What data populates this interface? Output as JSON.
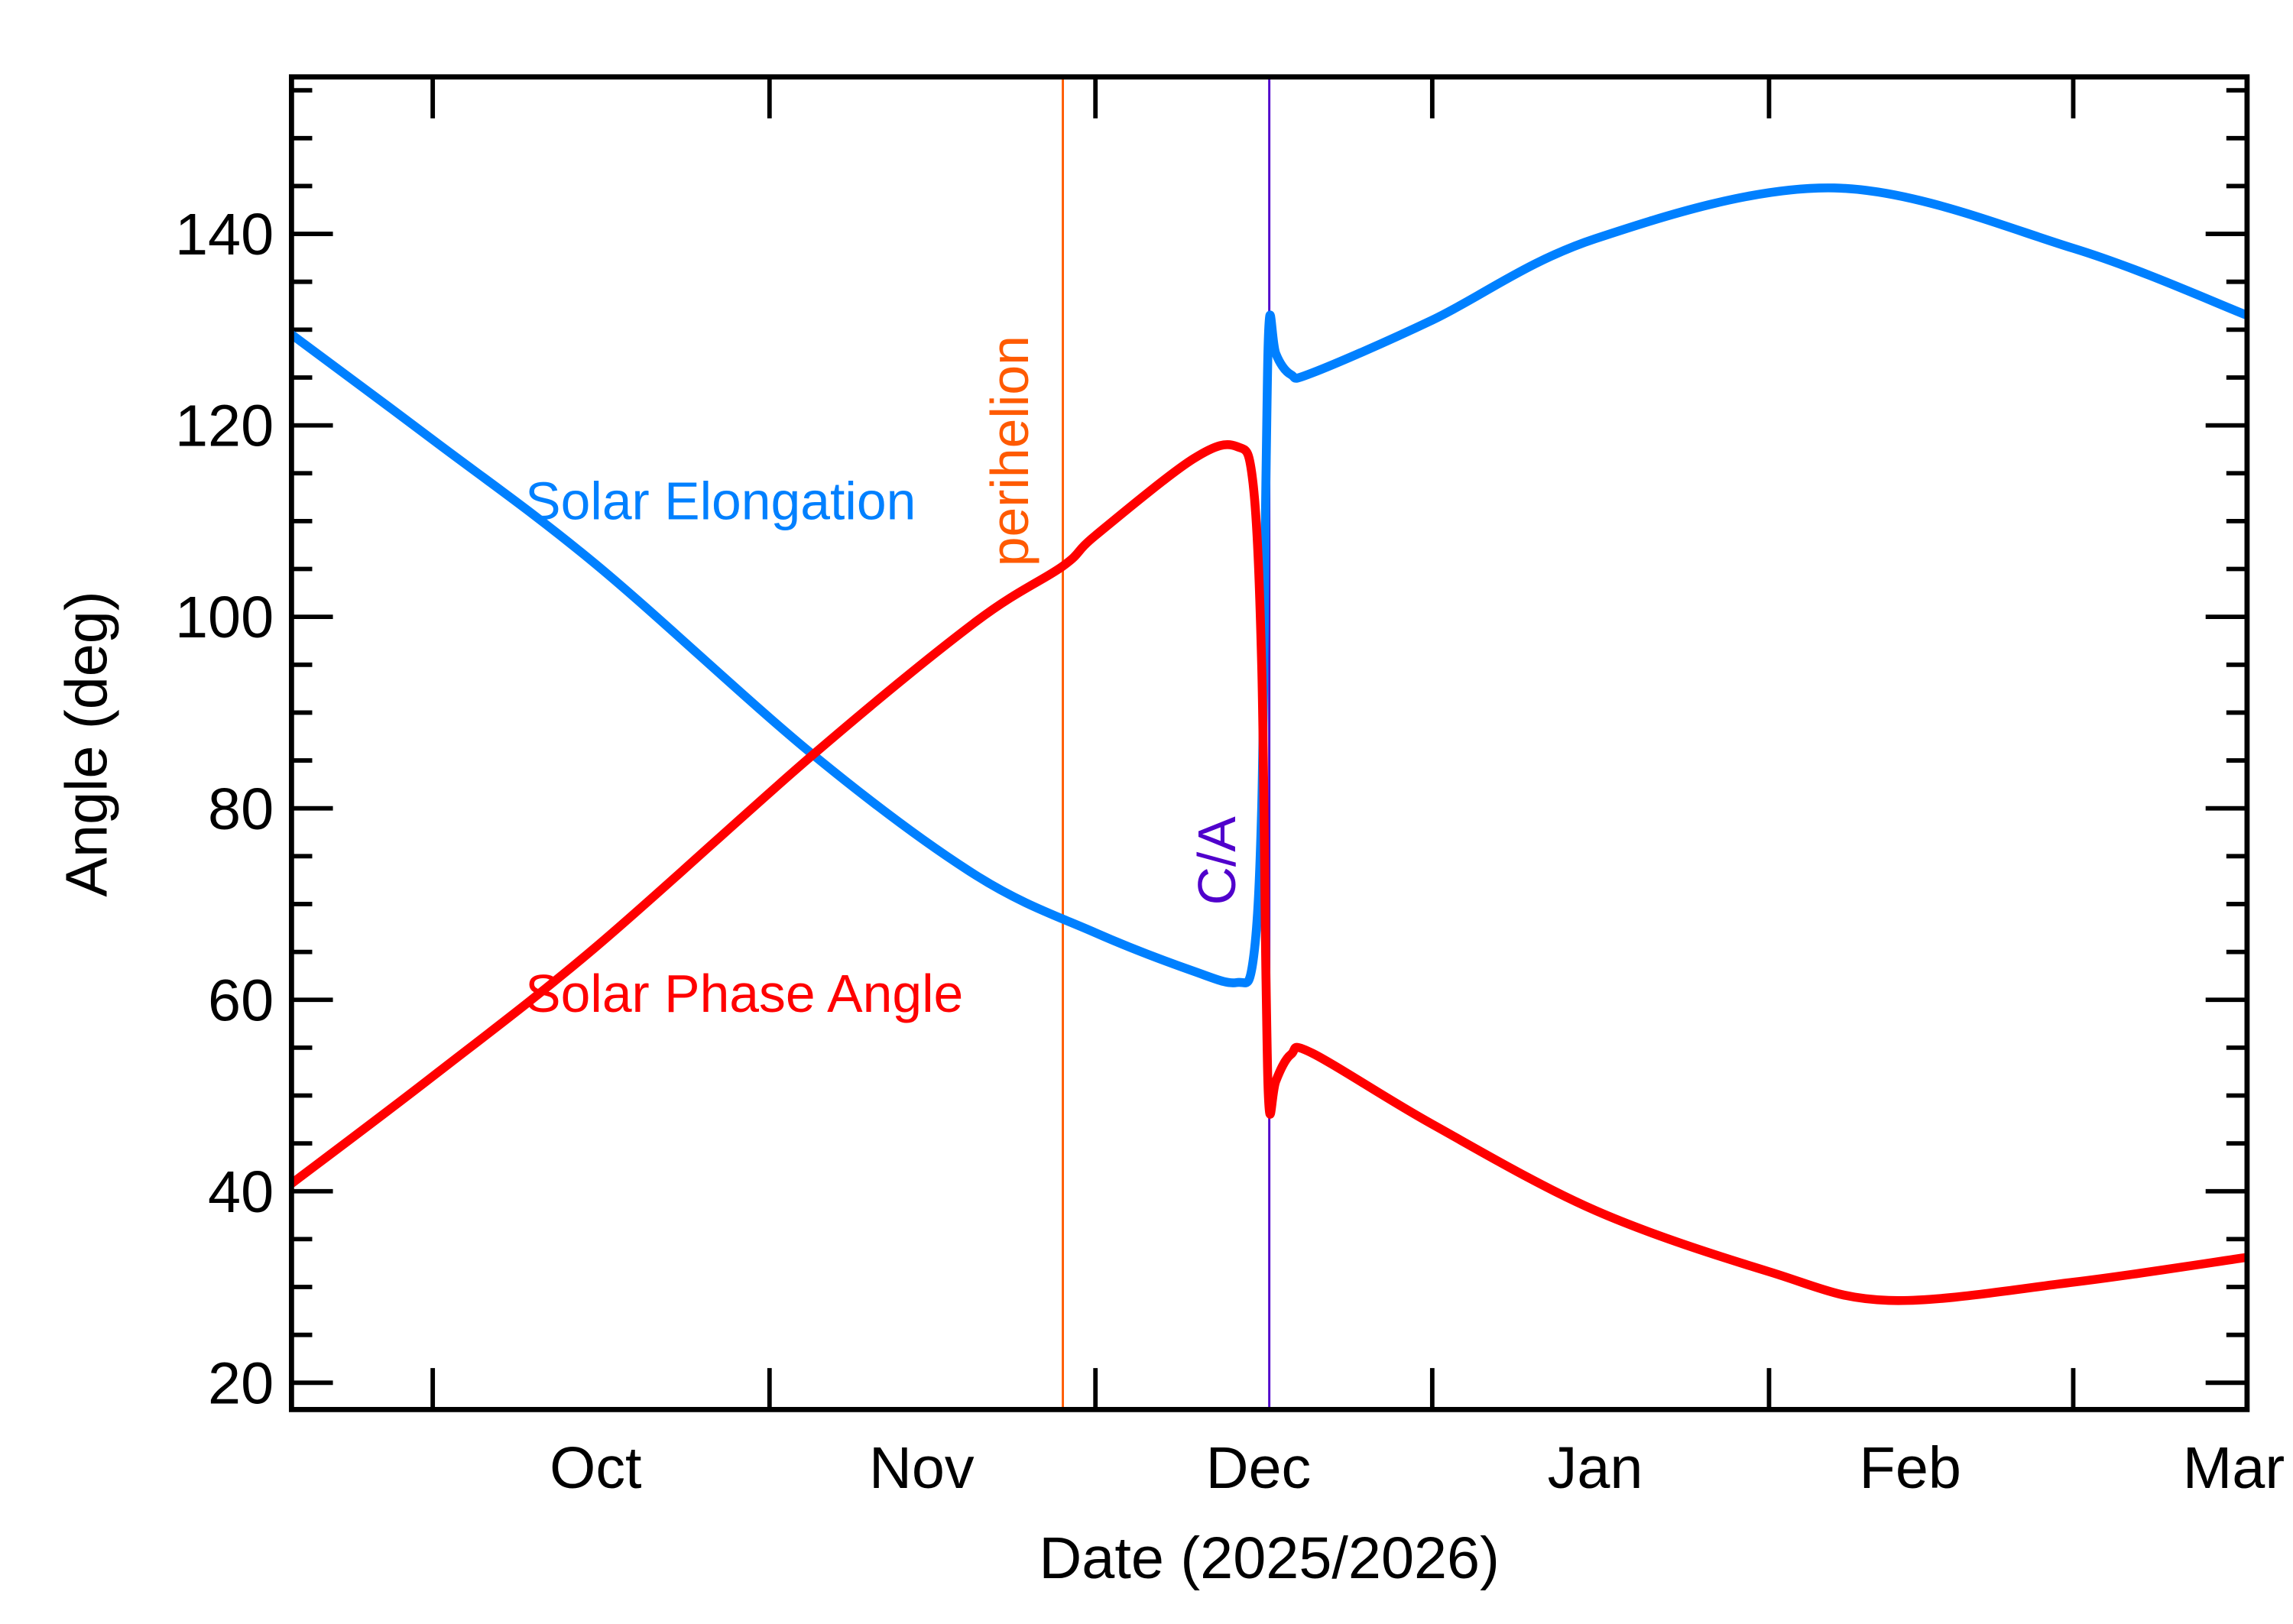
{
  "chart_data": {
    "type": "line",
    "title": "",
    "xlabel": "Date (2025/2026)",
    "ylabel": "Angle (deg)",
    "xlim": [
      "2025-09-18",
      "2026-03-17"
    ],
    "ylim": [
      17.2,
      156.4
    ],
    "grid": false,
    "x_tick_labels": [
      {
        "label": "Oct",
        "date": "2025-10-16"
      },
      {
        "label": "Nov",
        "date": "2025-11-15"
      },
      {
        "label": "Dec",
        "date": "2025-12-16"
      },
      {
        "label": "Jan",
        "date": "2026-01-16"
      },
      {
        "label": "Feb",
        "date": "2026-02-14"
      },
      {
        "label": "Mar",
        "date": "2026-03-16"
      }
    ],
    "x_major_ticks": [
      "2025-10-01",
      "2025-11-01",
      "2025-12-01",
      "2026-01-01",
      "2026-02-01",
      "2026-03-01"
    ],
    "y_ticks": [
      20,
      40,
      60,
      80,
      100,
      120,
      140
    ],
    "y_minor_step": 5,
    "series": [
      {
        "name": "Solar Elongation",
        "color": "#0080ff",
        "points": [
          [
            "2025-09-18",
            129.5
          ],
          [
            "2025-10-01",
            118.5
          ],
          [
            "2025-10-16",
            105.5
          ],
          [
            "2025-11-05",
            85.6
          ],
          [
            "2025-11-20",
            73.0
          ],
          [
            "2025-12-01",
            67.0
          ],
          [
            "2025-12-10",
            63.0
          ],
          [
            "2025-12-14",
            61.8
          ],
          [
            "2025-12-15.5",
            64.0
          ],
          [
            "2025-12-16.3",
            80.0
          ],
          [
            "2025-12-16.7",
            115.0
          ],
          [
            "2025-12-17",
            131.0
          ],
          [
            "2025-12-17.6",
            127.5
          ],
          [
            "2025-12-19",
            125.3
          ],
          [
            "2025-12-21",
            125.5
          ],
          [
            "2026-01-01",
            131.0
          ],
          [
            "2026-01-16",
            139.5
          ],
          [
            "2026-02-07",
            144.8
          ],
          [
            "2026-03-01",
            138.5
          ],
          [
            "2026-03-17",
            131.5
          ]
        ]
      },
      {
        "name": "Solar Phase Angle",
        "color": "#ff0000",
        "points": [
          [
            "2025-09-18",
            40.8
          ],
          [
            "2025-10-01",
            52.0
          ],
          [
            "2025-10-16",
            65.5
          ],
          [
            "2025-11-05",
            85.6
          ],
          [
            "2025-11-20",
            99.5
          ],
          [
            "2025-11-28",
            105.3
          ],
          [
            "2025-12-01",
            108.5
          ],
          [
            "2025-12-10",
            116.5
          ],
          [
            "2025-12-14",
            117.8
          ],
          [
            "2025-12-15.5",
            114.0
          ],
          [
            "2025-12-16.3",
            95.0
          ],
          [
            "2025-12-16.7",
            62.0
          ],
          [
            "2025-12-17",
            48.5
          ],
          [
            "2025-12-17.6",
            51.5
          ],
          [
            "2025-12-19",
            54.3
          ],
          [
            "2025-12-21",
            54.4
          ],
          [
            "2026-01-01",
            47.0
          ],
          [
            "2026-01-16",
            38.0
          ],
          [
            "2026-02-01",
            31.6
          ],
          [
            "2026-02-12",
            28.6
          ],
          [
            "2026-03-01",
            30.5
          ],
          [
            "2026-03-17",
            33.1
          ]
        ]
      }
    ],
    "vertical_lines": [
      {
        "label": "perihelion",
        "date": "2025-11-28",
        "color": "#ff5a00"
      },
      {
        "label": "C/A",
        "date": "2025-12-17",
        "color": "#5000cc"
      }
    ]
  }
}
